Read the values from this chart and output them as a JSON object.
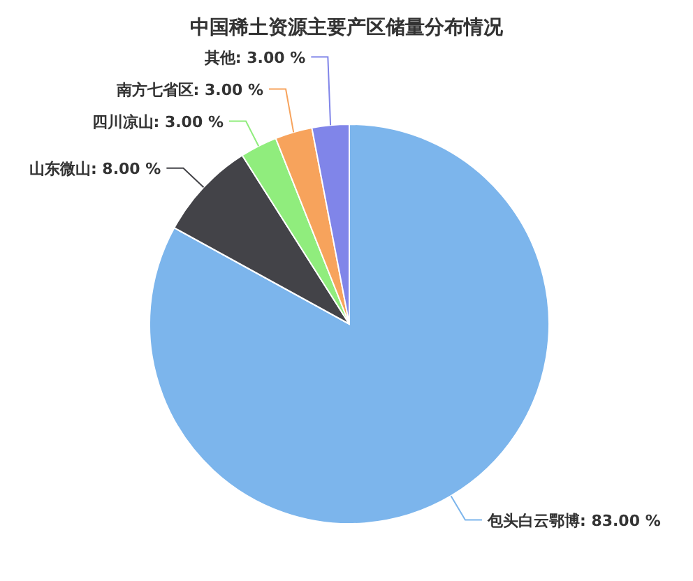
{
  "chart_data": {
    "type": "pie",
    "title": "中国稀土资源主要产区储量分布情况",
    "categories": [
      "包头白云鄂博",
      "山东微山",
      "四川凉山",
      "南方七省区",
      "其他"
    ],
    "values": [
      83,
      8,
      3,
      3,
      3
    ],
    "value_labels": [
      "83.00 %",
      "8.00 %",
      "3.00 %",
      "3.00 %",
      "3.00 %"
    ],
    "colors": [
      "#7cb5ec",
      "#434348",
      "#90ed7d",
      "#f7a35c",
      "#8085e9"
    ]
  }
}
